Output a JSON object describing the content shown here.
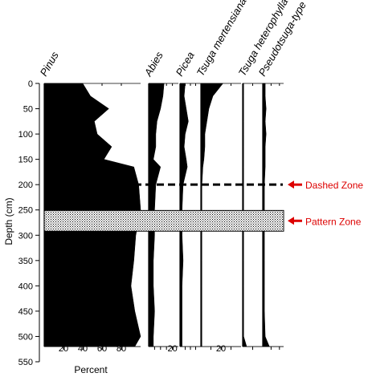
{
  "chart_data": {
    "type": "area",
    "chart_kind": "pollen-percentage-diagram",
    "y_axis": {
      "label": "Depth (cm)",
      "range": [
        0,
        550
      ],
      "ticks": [
        0,
        50,
        100,
        150,
        200,
        250,
        300,
        350,
        400,
        450,
        500,
        550
      ],
      "inverted": true
    },
    "x_axis_label": "Percent",
    "depths": [
      0,
      25,
      50,
      75,
      100,
      125,
      150,
      165,
      200,
      250,
      300,
      350,
      400,
      450,
      500,
      520
    ],
    "taxa": [
      {
        "name": "Pinus",
        "xlim": [
          0,
          100
        ],
        "ticks": [
          20,
          40,
          60,
          80
        ],
        "tick_labels": [
          "20",
          "40",
          "60",
          "80"
        ],
        "values": [
          40,
          48,
          67,
          52,
          55,
          70,
          62,
          93,
          98,
          100,
          95,
          93,
          90,
          94,
          100,
          94
        ]
      },
      {
        "name": "Abies",
        "xlim": [
          0,
          25
        ],
        "ticks": [
          5,
          10,
          15,
          20
        ],
        "tick_labels": [
          "",
          "",
          "",
          "20"
        ],
        "values": [
          13,
          12,
          10,
          7,
          6,
          6,
          4,
          10,
          6,
          5,
          5,
          4,
          4,
          5,
          4,
          4
        ]
      },
      {
        "name": "Picea",
        "xlim": [
          0,
          20
        ],
        "ticks": [
          5,
          10,
          15
        ],
        "tick_labels": [
          "",
          "",
          ""
        ],
        "values": [
          5,
          4,
          6,
          8,
          5,
          4,
          6,
          7,
          3,
          2,
          2,
          3,
          2,
          2,
          2,
          2
        ]
      },
      {
        "name": "Tsuga mertensiana",
        "xlim": [
          0,
          40
        ],
        "ticks": [
          10,
          20,
          30
        ],
        "tick_labels": [
          "",
          "20",
          ""
        ],
        "values": [
          22,
          12,
          8,
          6,
          4,
          4,
          3,
          2,
          1,
          1,
          1,
          1,
          1,
          1,
          1,
          1
        ]
      },
      {
        "name": "Tsuga heterophylla",
        "xlim": [
          0,
          20
        ],
        "ticks": [
          10
        ],
        "tick_labels": [
          ""
        ],
        "values": [
          1,
          1,
          1,
          1,
          1,
          1,
          1,
          1,
          1,
          1,
          1,
          1,
          1,
          1,
          1,
          4
        ]
      },
      {
        "name": "Pseudotsuga-type",
        "xlim": [
          0,
          25
        ],
        "ticks": [
          10,
          20
        ],
        "tick_labels": [
          "",
          ""
        ],
        "values": [
          3,
          3,
          4,
          3,
          4,
          3,
          3,
          3,
          2,
          2,
          2,
          2,
          2,
          2,
          3,
          8
        ]
      }
    ],
    "annotations": [
      {
        "label": "Dashed Zone",
        "style": "dashed-line",
        "depth": 200,
        "color": "#dd0000"
      },
      {
        "label": "Pattern Zone",
        "style": "stippled-band",
        "depth_range": [
          251,
          292
        ],
        "color": "#dd0000"
      }
    ]
  }
}
